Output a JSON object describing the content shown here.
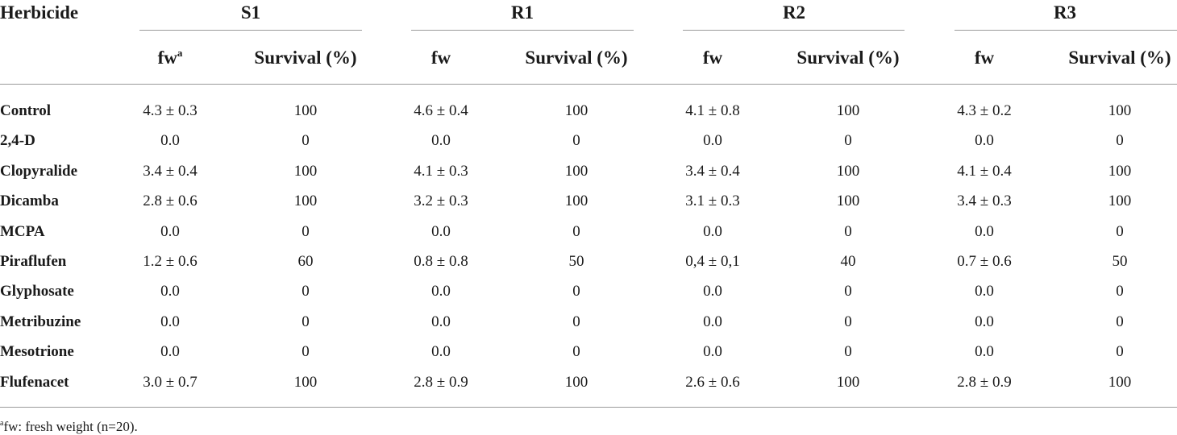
{
  "table": {
    "corner_header": "Herbicide",
    "groups": [
      "S1",
      "R1",
      "R2",
      "R3"
    ],
    "subheaders": {
      "fw": "fw",
      "fw_note_marker": "a",
      "survival": "Survival (%)"
    },
    "rows": [
      {
        "herbicide": "Control",
        "values": [
          "4.3 ± 0.3",
          "100",
          "4.6 ± 0.4",
          "100",
          "4.1 ± 0.8",
          "100",
          "4.3 ± 0.2",
          "100"
        ]
      },
      {
        "herbicide": "2,4-D",
        "values": [
          "0.0",
          "0",
          "0.0",
          "0",
          "0.0",
          "0",
          "0.0",
          "0"
        ]
      },
      {
        "herbicide": "Clopyralide",
        "values": [
          "3.4 ± 0.4",
          "100",
          "4.1 ± 0.3",
          "100",
          "3.4 ± 0.4",
          "100",
          "4.1 ± 0.4",
          "100"
        ]
      },
      {
        "herbicide": "Dicamba",
        "values": [
          "2.8 ± 0.6",
          "100",
          "3.2 ± 0.3",
          "100",
          "3.1 ± 0.3",
          "100",
          "3.4 ± 0.3",
          "100"
        ]
      },
      {
        "herbicide": "MCPA",
        "values": [
          "0.0",
          "0",
          "0.0",
          "0",
          "0.0",
          "0",
          "0.0",
          "0"
        ]
      },
      {
        "herbicide": "Piraflufen",
        "values": [
          "1.2 ± 0.6",
          "60",
          "0.8 ± 0.8",
          "50",
          "0,4 ± 0,1",
          "40",
          "0.7 ± 0.6",
          "50"
        ]
      },
      {
        "herbicide": "Glyphosate",
        "values": [
          "0.0",
          "0",
          "0.0",
          "0",
          "0.0",
          "0",
          "0.0",
          "0"
        ]
      },
      {
        "herbicide": "Metribuzine",
        "values": [
          "0.0",
          "0",
          "0.0",
          "0",
          "0.0",
          "0",
          "0.0",
          "0"
        ]
      },
      {
        "herbicide": "Mesotrione",
        "values": [
          "0.0",
          "0",
          "0.0",
          "0",
          "0.0",
          "0",
          "0.0",
          "0"
        ]
      },
      {
        "herbicide": "Flufenacet",
        "values": [
          "3.0 ± 0.7",
          "100",
          "2.8 ± 0.9",
          "100",
          "2.6 ± 0.6",
          "100",
          "2.8 ± 0.9",
          "100"
        ]
      }
    ],
    "footnote": {
      "marker": "a",
      "text": "fw: fresh weight (n=20)."
    }
  }
}
